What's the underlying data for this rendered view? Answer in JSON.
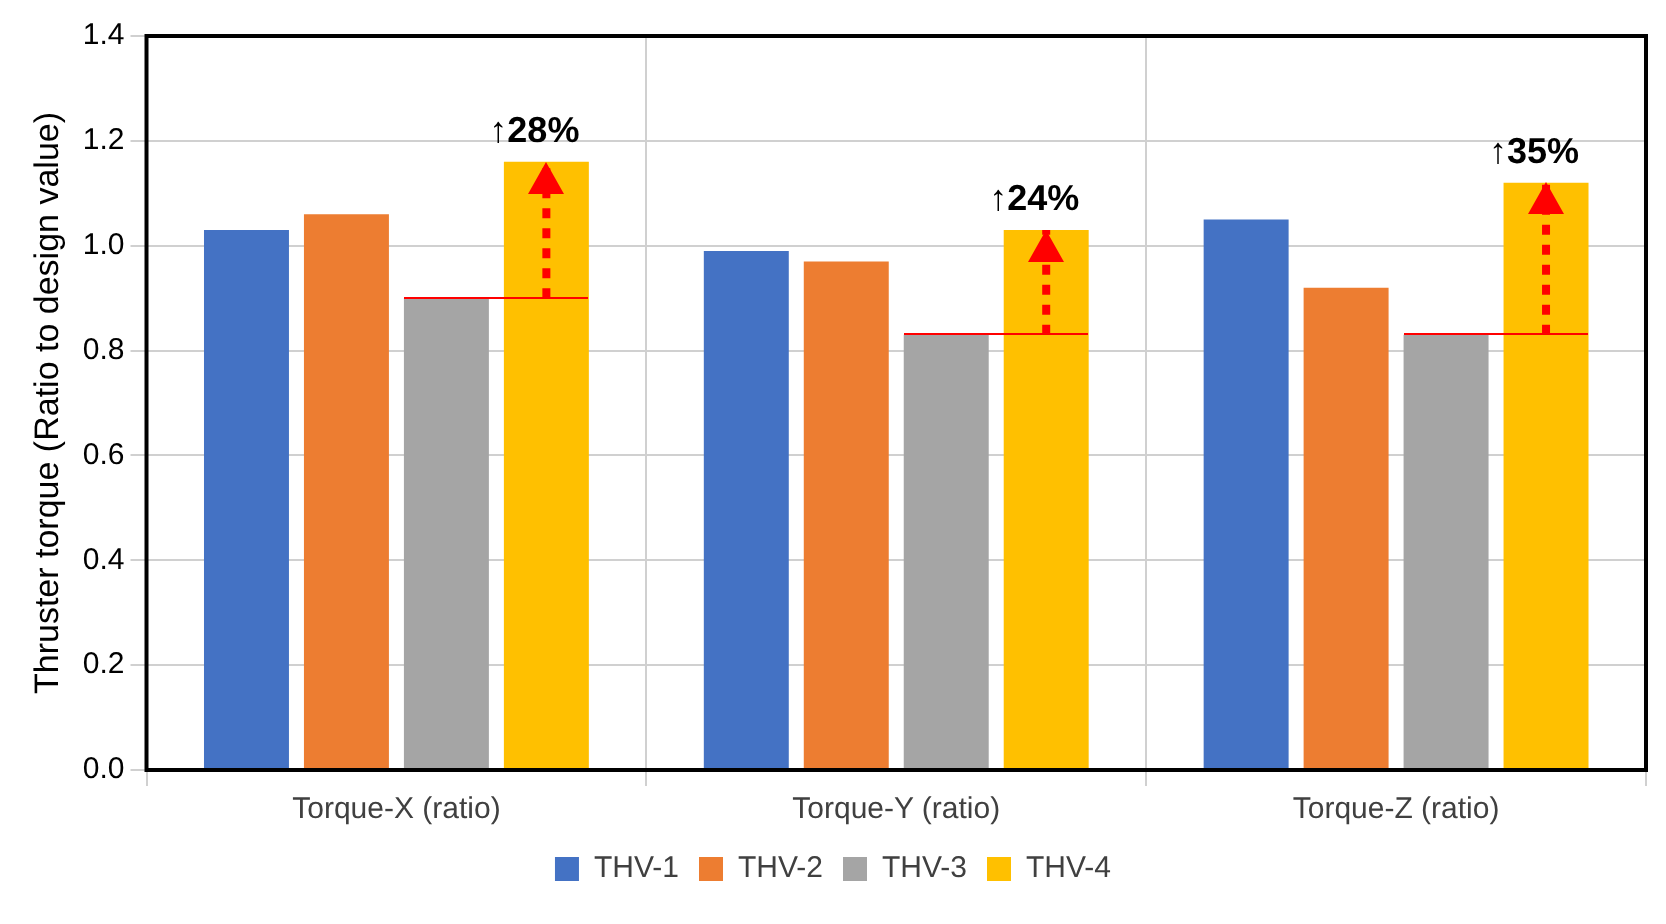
{
  "chart_data": {
    "type": "bar",
    "ylabel": "Thruster torque (Ratio to design value)",
    "categories": [
      "Torque-X (ratio)",
      "Torque-Y (ratio)",
      "Torque-Z (ratio)"
    ],
    "series": [
      {
        "name": "THV-1",
        "color": "#4472c4",
        "values": [
          1.03,
          0.99,
          1.05
        ]
      },
      {
        "name": "THV-2",
        "color": "#ed7d31",
        "values": [
          1.06,
          0.97,
          0.92
        ]
      },
      {
        "name": "THV-3",
        "color": "#a5a5a5",
        "values": [
          0.9,
          0.83,
          0.83
        ]
      },
      {
        "name": "THV-4",
        "color": "#ffc000",
        "values": [
          1.16,
          1.03,
          1.12
        ],
        "errors": [
          [
            0.9,
            1.16
          ],
          [
            0.83,
            1.03
          ],
          [
            0.83,
            1.12
          ]
        ]
      }
    ],
    "ylim": [
      0,
      1.4
    ],
    "yticks": [
      {
        "value": 0,
        "label": "0.0"
      },
      {
        "value": 0.2,
        "label": "0.2"
      },
      {
        "value": 0.4,
        "label": "0.4"
      },
      {
        "value": 0.6,
        "label": "0.6"
      },
      {
        "value": 0.8,
        "label": "0.8"
      },
      {
        "value": 1,
        "label": "1.0"
      },
      {
        "value": 1.2,
        "label": "1.2"
      },
      {
        "value": 1.4,
        "label": "1.4"
      }
    ],
    "grid": true,
    "legend": "bottom",
    "annotations": [
      "↑28%",
      "↑24%",
      "↑35%"
    ]
  }
}
